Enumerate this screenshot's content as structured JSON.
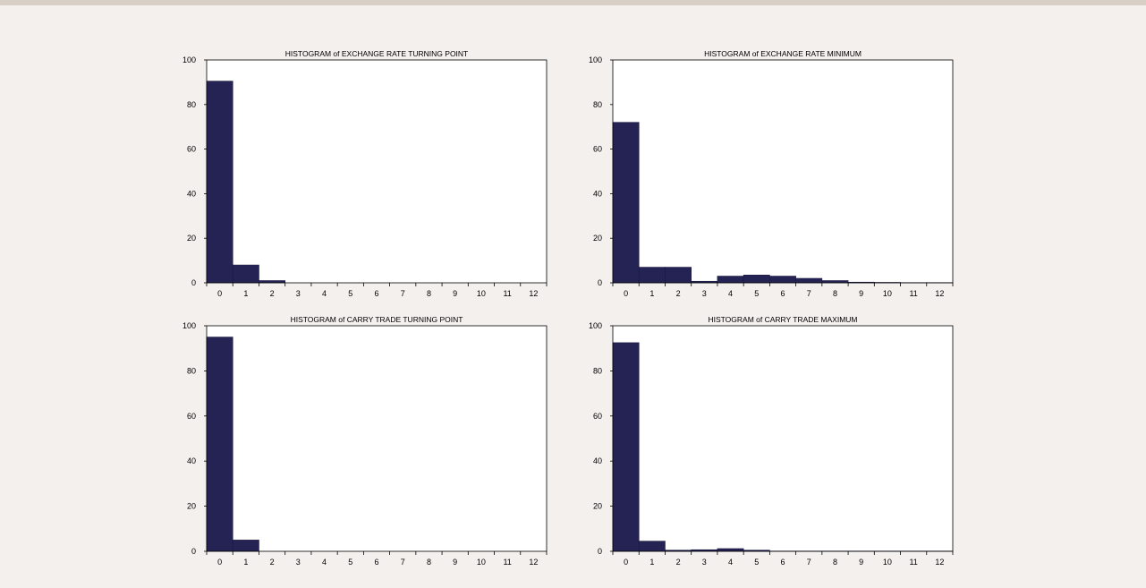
{
  "colors": {
    "bar": "#252254",
    "bar_edge": "#1a1840",
    "frame": "#000000",
    "plot_bg": "#ffffff",
    "page_bg": "#f3f0ed"
  },
  "chart_data": [
    {
      "type": "bar",
      "title": "HISTOGRAM of EXCHANGE RATE TURNING POINT",
      "categories": [
        "0",
        "1",
        "2",
        "3",
        "4",
        "5",
        "6",
        "7",
        "8",
        "9",
        "10",
        "11",
        "12"
      ],
      "values": [
        90.5,
        8,
        1,
        0,
        0,
        0,
        0,
        0,
        0,
        0,
        0,
        0,
        0
      ],
      "ylim": [
        0,
        100
      ],
      "yticks": [
        "0",
        "20",
        "40",
        "60",
        "80",
        "100"
      ],
      "grid": false
    },
    {
      "type": "bar",
      "title": "HISTOGRAM of EXCHANGE RATE MINIMUM",
      "categories": [
        "0",
        "1",
        "2",
        "3",
        "4",
        "5",
        "6",
        "7",
        "8",
        "9",
        "10",
        "11",
        "12"
      ],
      "values": [
        72,
        7,
        7,
        0.7,
        3,
        3.5,
        3,
        2,
        1,
        0.3,
        0.2,
        0.1,
        0.1
      ],
      "ylim": [
        0,
        100
      ],
      "yticks": [
        "0",
        "20",
        "40",
        "60",
        "80",
        "100"
      ],
      "grid": false
    },
    {
      "type": "bar",
      "title": "HISTOGRAM of CARRY TRADE TURNING POINT",
      "categories": [
        "0",
        "1",
        "2",
        "3",
        "4",
        "5",
        "6",
        "7",
        "8",
        "9",
        "10",
        "11",
        "12"
      ],
      "values": [
        95,
        5,
        0,
        0,
        0,
        0,
        0,
        0,
        0,
        0,
        0,
        0,
        0
      ],
      "ylim": [
        0,
        100
      ],
      "yticks": [
        "0",
        "20",
        "40",
        "60",
        "80",
        "100"
      ],
      "grid": false
    },
    {
      "type": "bar",
      "title": "HISTOGRAM of CARRY TRADE MAXIMUM",
      "categories": [
        "0",
        "1",
        "2",
        "3",
        "4",
        "5",
        "6",
        "7",
        "8",
        "9",
        "10",
        "11",
        "12"
      ],
      "values": [
        92.5,
        4.5,
        0.5,
        0.7,
        1.2,
        0.5,
        0.1,
        0.1,
        0.1,
        0.1,
        0.1,
        0.1,
        0.1
      ],
      "ylim": [
        0,
        100
      ],
      "yticks": [
        "0",
        "20",
        "40",
        "60",
        "80",
        "100"
      ],
      "grid": false
    }
  ]
}
